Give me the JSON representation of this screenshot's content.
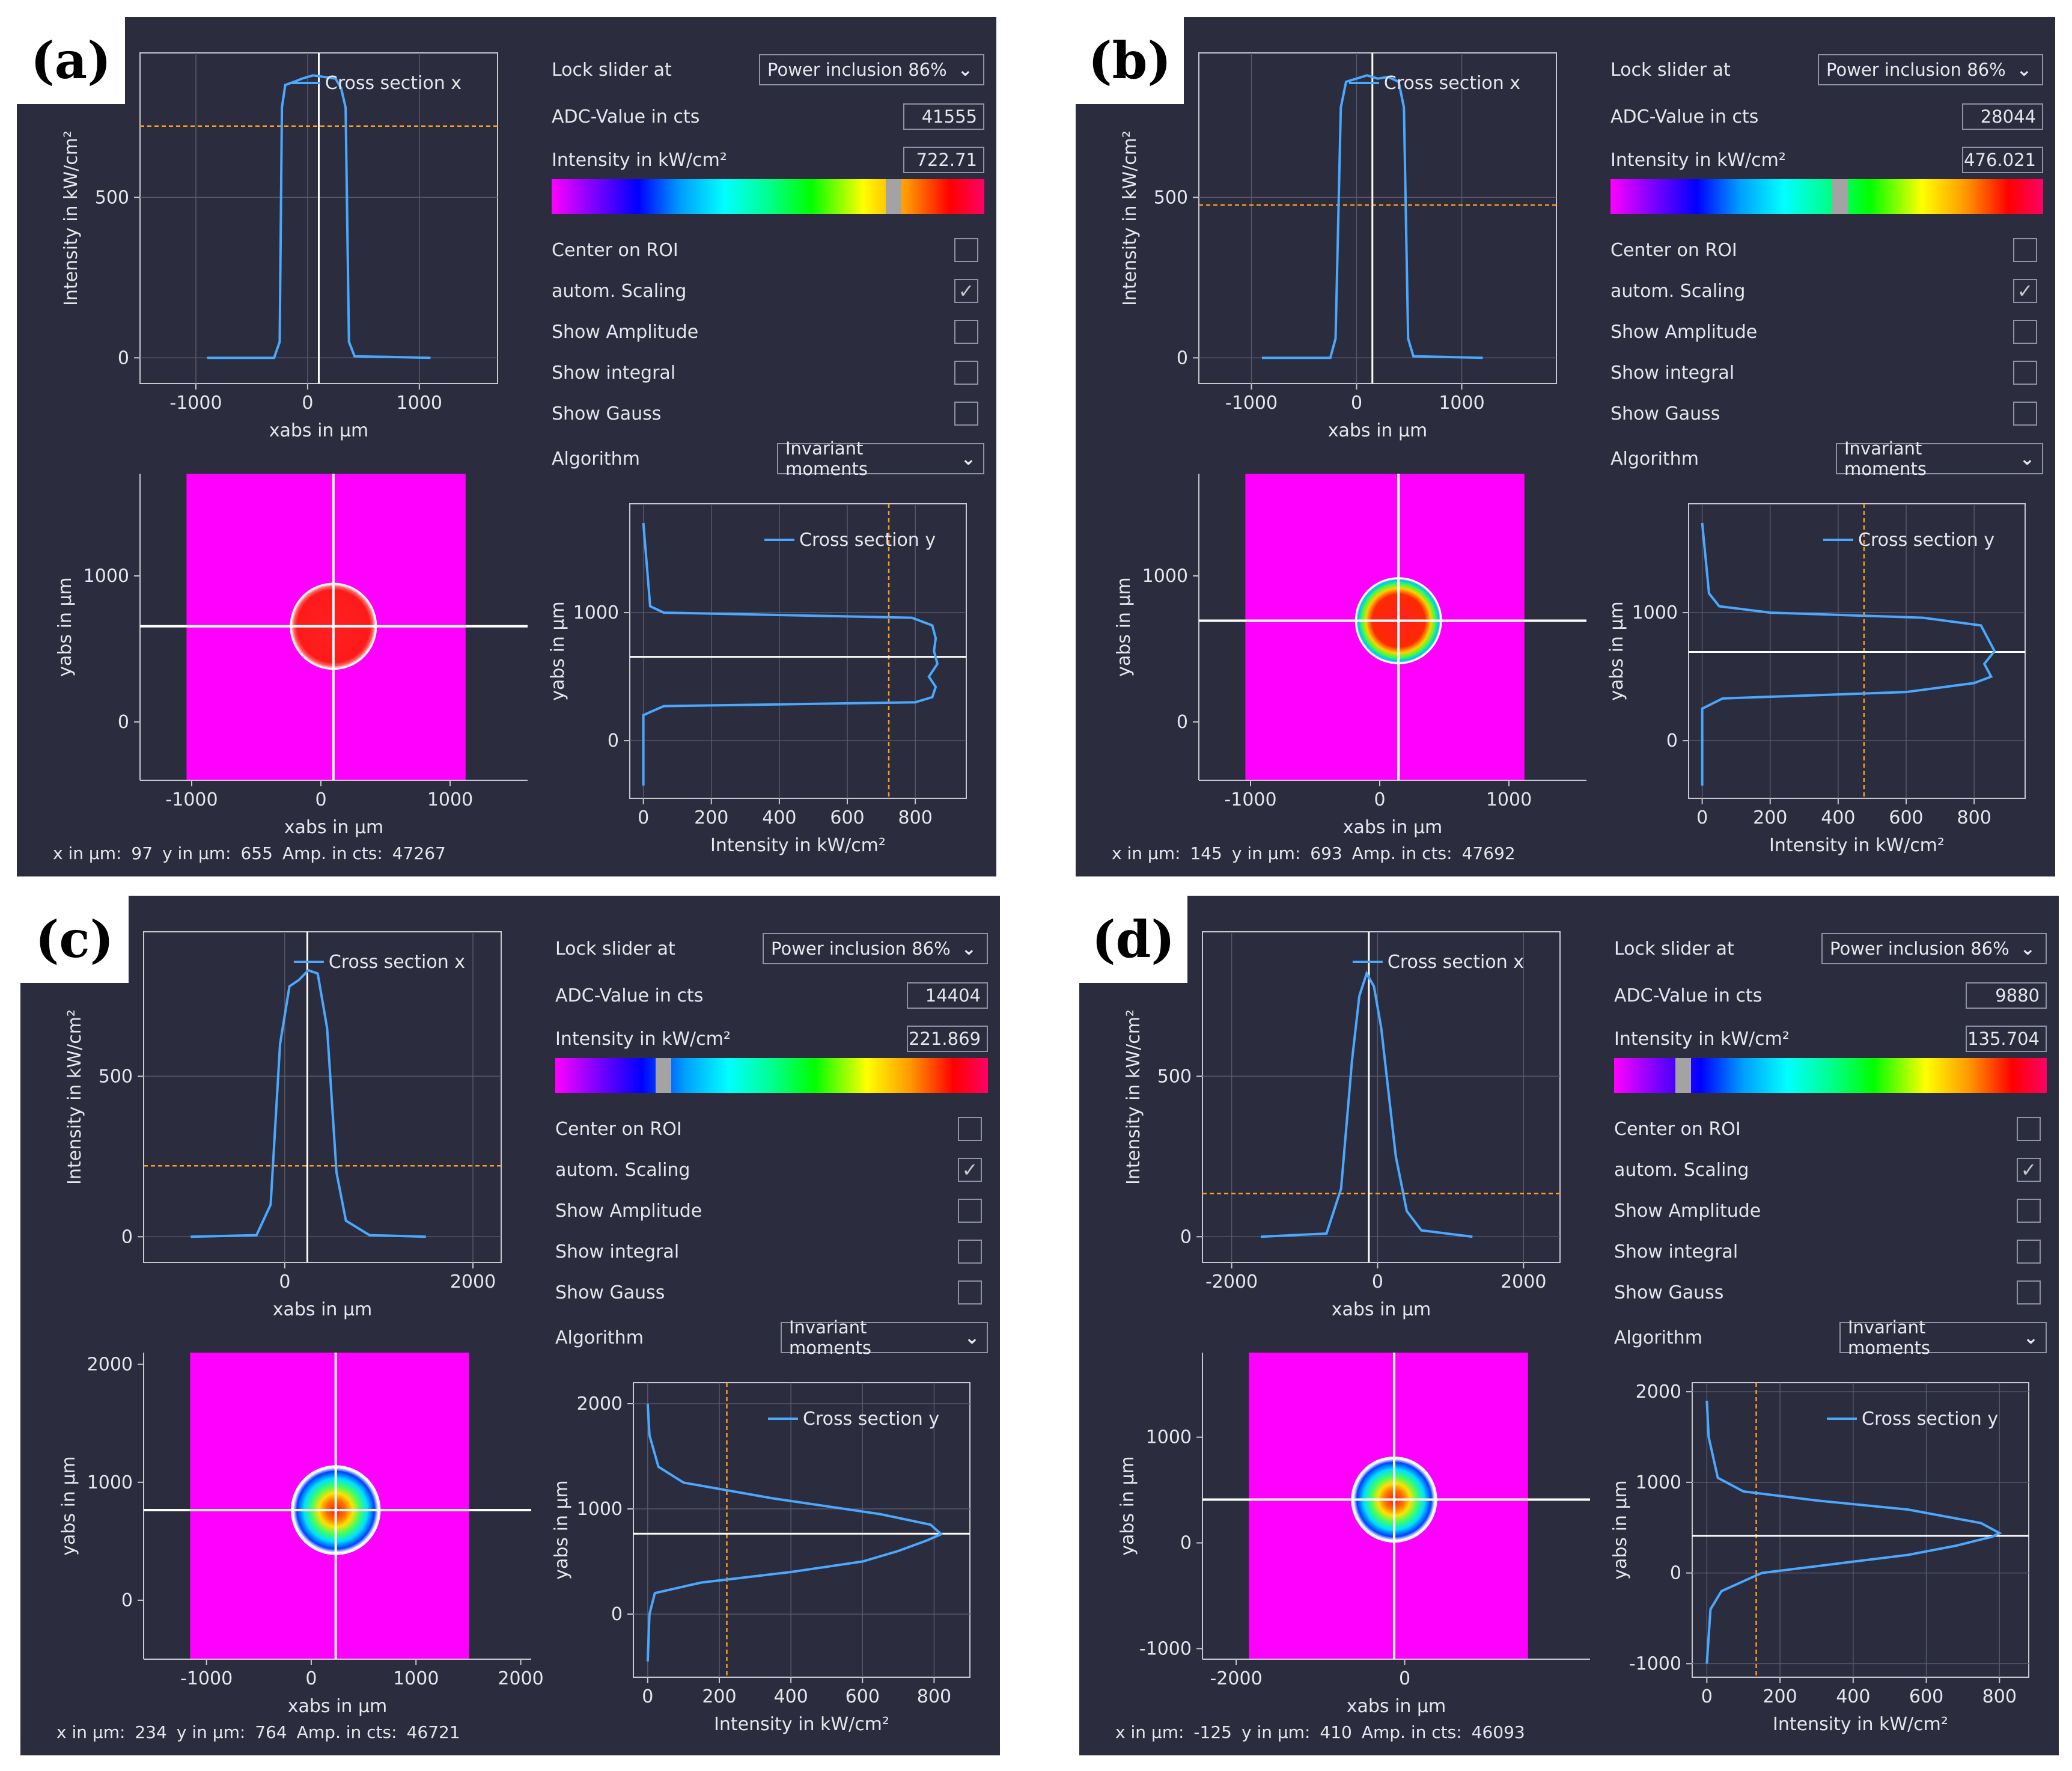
{
  "common": {
    "lock_label": "Lock slider at",
    "adc_label": "ADC-Value in cts",
    "intensity_label": "Intensity in kW/cm²",
    "center_roi": "Center on ROI",
    "auto_scaling": "autom. Scaling",
    "show_amplitude": "Show Amplitude",
    "show_integral": "Show integral",
    "show_gauss": "Show Gauss",
    "algorithm_label": "Algorithm",
    "x_label_prefix": "x in µm:",
    "y_label_prefix": "y in µm:",
    "amp_label_prefix": "Amp. in cts:",
    "cross_x_legend": "Cross section x",
    "cross_y_legend": "Cross section y",
    "ylabel_x_plot": "Intensity in kW/cm²",
    "xlabel_x_plot": "xabs in µm",
    "xlabel_img": "xabs in µm",
    "ylabel_img": "yabs in µm",
    "xlabel_y_plot": "Intensity in kW/cm²",
    "ylabel_y_plot": "yabs in µm",
    "checkmark": "✓"
  },
  "panels": [
    {
      "tag": "(a)",
      "lock_value": "Power inclusion 86%",
      "adc_value": "41555",
      "intensity_value": "722.71",
      "algorithm_value": "Invariant moments",
      "status_x": "97",
      "status_y": "655",
      "status_amp": "47267",
      "colorbar_marker": 0.79,
      "auto_scaling_checked": true,
      "x_plot": {
        "xlim": [
          -1500,
          1700
        ],
        "ylim": [
          -80,
          950
        ],
        "xticks": [
          -1000,
          0,
          1000
        ],
        "yticks": [
          0,
          500
        ],
        "cursor": 100,
        "level": 722,
        "profile": [
          [
            -900,
            0
          ],
          [
            -300,
            0
          ],
          [
            -250,
            50
          ],
          [
            -230,
            780
          ],
          [
            -200,
            850
          ],
          [
            -120,
            860
          ],
          [
            -50,
            870
          ],
          [
            50,
            880
          ],
          [
            150,
            875
          ],
          [
            250,
            870
          ],
          [
            300,
            840
          ],
          [
            340,
            780
          ],
          [
            370,
            50
          ],
          [
            420,
            5
          ],
          [
            1100,
            0
          ]
        ]
      },
      "img": {
        "xlim": [
          -1400,
          1600
        ],
        "ylim": [
          -400,
          1700
        ],
        "xticks": [
          -1000,
          0,
          1000
        ],
        "yticks": [
          0,
          1000
        ],
        "cursor_x": 97,
        "cursor_y": 655,
        "beam_r": 330,
        "profile": "tophat"
      },
      "y_plot": {
        "xlim": [
          -40,
          950
        ],
        "ylim": [
          -450,
          1850
        ],
        "xticks": [
          0,
          200,
          400,
          600,
          800
        ],
        "yticks": [
          0,
          1000
        ],
        "cursor_y": 655,
        "level": 722,
        "profile": [
          [
            -350,
            0
          ],
          [
            200,
            0
          ],
          [
            270,
            60
          ],
          [
            300,
            800
          ],
          [
            340,
            850
          ],
          [
            420,
            860
          ],
          [
            500,
            840
          ],
          [
            600,
            865
          ],
          [
            700,
            855
          ],
          [
            800,
            860
          ],
          [
            900,
            850
          ],
          [
            960,
            790
          ],
          [
            1000,
            60
          ],
          [
            1050,
            20
          ],
          [
            1700,
            0
          ]
        ]
      }
    },
    {
      "tag": "(b)",
      "lock_value": "Power inclusion 86%",
      "adc_value": "28044",
      "intensity_value": "476.021",
      "algorithm_value": "Invariant moments",
      "status_x": "145",
      "status_y": "693",
      "status_amp": "47692",
      "colorbar_marker": 0.53,
      "auto_scaling_checked": true,
      "x_plot": {
        "xlim": [
          -1500,
          1900
        ],
        "ylim": [
          -80,
          950
        ],
        "xticks": [
          -1000,
          0,
          1000
        ],
        "yticks": [
          0,
          500
        ],
        "cursor": 150,
        "level": 476,
        "profile": [
          [
            -900,
            0
          ],
          [
            -250,
            0
          ],
          [
            -200,
            60
          ],
          [
            -150,
            780
          ],
          [
            -100,
            860
          ],
          [
            0,
            870
          ],
          [
            100,
            880
          ],
          [
            200,
            870
          ],
          [
            300,
            875
          ],
          [
            400,
            860
          ],
          [
            450,
            780
          ],
          [
            490,
            60
          ],
          [
            540,
            5
          ],
          [
            1200,
            0
          ]
        ]
      },
      "img": {
        "xlim": [
          -1400,
          1600
        ],
        "ylim": [
          -400,
          1700
        ],
        "xticks": [
          -1000,
          0,
          1000
        ],
        "yticks": [
          0,
          1000
        ],
        "cursor_x": 145,
        "cursor_y": 693,
        "beam_r": 330,
        "profile": "soft"
      },
      "y_plot": {
        "xlim": [
          -40,
          950
        ],
        "ylim": [
          -450,
          1850
        ],
        "xticks": [
          0,
          200,
          400,
          600,
          800
        ],
        "yticks": [
          0,
          1000
        ],
        "cursor_y": 693,
        "level": 476,
        "profile": [
          [
            -350,
            0
          ],
          [
            250,
            0
          ],
          [
            330,
            60
          ],
          [
            380,
            600
          ],
          [
            450,
            800
          ],
          [
            500,
            850
          ],
          [
            600,
            830
          ],
          [
            700,
            860
          ],
          [
            800,
            840
          ],
          [
            900,
            820
          ],
          [
            960,
            650
          ],
          [
            1000,
            200
          ],
          [
            1050,
            50
          ],
          [
            1150,
            20
          ],
          [
            1700,
            0
          ]
        ]
      }
    },
    {
      "tag": "(c)",
      "lock_value": "Power inclusion 86%",
      "adc_value": "14404",
      "intensity_value": "221.869",
      "algorithm_value": "Invariant moments",
      "status_x": "234",
      "status_y": "764",
      "status_amp": "46721",
      "colorbar_marker": 0.25,
      "auto_scaling_checked": true,
      "x_plot": {
        "xlim": [
          -1500,
          2300
        ],
        "ylim": [
          -80,
          950
        ],
        "xticks": [
          0,
          2000
        ],
        "yticks": [
          0,
          500
        ],
        "cursor": 240,
        "level": 221,
        "profile": [
          [
            -1000,
            0
          ],
          [
            -300,
            5
          ],
          [
            -150,
            100
          ],
          [
            -50,
            600
          ],
          [
            50,
            780
          ],
          [
            150,
            800
          ],
          [
            250,
            830
          ],
          [
            350,
            820
          ],
          [
            450,
            650
          ],
          [
            550,
            200
          ],
          [
            650,
            50
          ],
          [
            900,
            5
          ],
          [
            1500,
            0
          ]
        ]
      },
      "img": {
        "xlim": [
          -1600,
          2100
        ],
        "ylim": [
          -500,
          2100
        ],
        "xticks": [
          -1000,
          0,
          1000,
          2000
        ],
        "yticks": [
          0,
          1000,
          2000
        ],
        "cursor_x": 234,
        "cursor_y": 764,
        "beam_r": 420,
        "profile": "gauss"
      },
      "y_plot": {
        "xlim": [
          -40,
          900
        ],
        "ylim": [
          -600,
          2200
        ],
        "xticks": [
          0,
          200,
          400,
          600,
          800
        ],
        "yticks": [
          0,
          1000,
          2000
        ],
        "cursor_y": 764,
        "level": 221,
        "profile": [
          [
            -450,
            0
          ],
          [
            0,
            5
          ],
          [
            200,
            20
          ],
          [
            300,
            150
          ],
          [
            400,
            400
          ],
          [
            500,
            600
          ],
          [
            600,
            700
          ],
          [
            700,
            780
          ],
          [
            760,
            820
          ],
          [
            850,
            790
          ],
          [
            950,
            650
          ],
          [
            1100,
            350
          ],
          [
            1250,
            100
          ],
          [
            1400,
            30
          ],
          [
            1700,
            5
          ],
          [
            2000,
            0
          ]
        ]
      }
    },
    {
      "tag": "(d)",
      "lock_value": "Power inclusion 86%",
      "adc_value": "9880",
      "intensity_value": "135.704",
      "algorithm_value": "Invariant moments",
      "status_x": "-125",
      "status_y": "410",
      "status_amp": "46093",
      "colorbar_marker": 0.16,
      "auto_scaling_checked": true,
      "x_plot": {
        "xlim": [
          -2400,
          2500
        ],
        "ylim": [
          -80,
          950
        ],
        "xticks": [
          -2000,
          0,
          2000
        ],
        "yticks": [
          0,
          500
        ],
        "cursor": -120,
        "level": 135,
        "profile": [
          [
            -1600,
            0
          ],
          [
            -700,
            10
          ],
          [
            -500,
            150
          ],
          [
            -350,
            550
          ],
          [
            -250,
            750
          ],
          [
            -150,
            820
          ],
          [
            -50,
            780
          ],
          [
            50,
            650
          ],
          [
            150,
            450
          ],
          [
            250,
            250
          ],
          [
            400,
            80
          ],
          [
            600,
            20
          ],
          [
            1300,
            0
          ]
        ]
      },
      "img": {
        "xlim": [
          -2400,
          2200
        ],
        "ylim": [
          -1100,
          1800
        ],
        "xticks": [
          -2000,
          0
        ],
        "yticks": [
          -1000,
          0,
          1000
        ],
        "cursor_x": -125,
        "cursor_y": 410,
        "beam_r": 500,
        "profile": "gauss"
      },
      "y_plot": {
        "xlim": [
          -40,
          880
        ],
        "ylim": [
          -1150,
          2100
        ],
        "xticks": [
          0,
          200,
          400,
          600,
          800
        ],
        "yticks": [
          -1000,
          0,
          1000,
          2000
        ],
        "cursor_y": 410,
        "level": 135,
        "profile": [
          [
            -1000,
            0
          ],
          [
            -400,
            10
          ],
          [
            -200,
            40
          ],
          [
            0,
            150
          ],
          [
            100,
            350
          ],
          [
            200,
            550
          ],
          [
            300,
            680
          ],
          [
            400,
            780
          ],
          [
            440,
            800
          ],
          [
            550,
            750
          ],
          [
            700,
            550
          ],
          [
            800,
            300
          ],
          [
            900,
            100
          ],
          [
            1050,
            30
          ],
          [
            1500,
            5
          ],
          [
            1900,
            0
          ]
        ]
      }
    }
  ]
}
